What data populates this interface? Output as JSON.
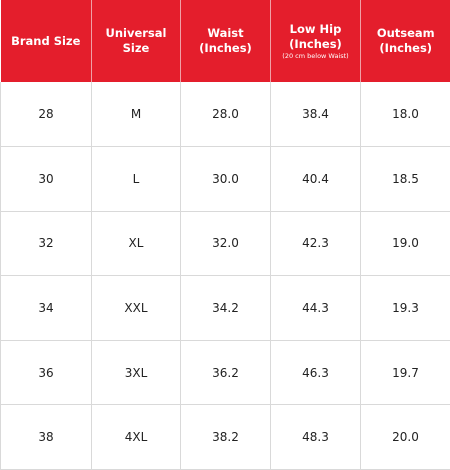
{
  "header": {
    "col1": "Brand Size",
    "col2": "Universal Size",
    "col3_line1": "Waist",
    "col3_line2": "(Inches)",
    "col4_line1": "Low Hip",
    "col4_line2": "(Inches)",
    "col4_sub": "(20 cm below Waist)",
    "col5_line1": "Outseam",
    "col5_line2": "(Inches)"
  },
  "rows": [
    {
      "brand": "28",
      "universal": "M",
      "waist": "28.0",
      "hip": "38.4",
      "outseam": "18.0"
    },
    {
      "brand": "30",
      "universal": "L",
      "waist": "30.0",
      "hip": "40.4",
      "outseam": "18.5"
    },
    {
      "brand": "32",
      "universal": "XL",
      "waist": "32.0",
      "hip": "42.3",
      "outseam": "19.0"
    },
    {
      "brand": "34",
      "universal": "XXL",
      "waist": "34.2",
      "hip": "44.3",
      "outseam": "19.3"
    },
    {
      "brand": "36",
      "universal": "3XL",
      "waist": "36.2",
      "hip": "46.3",
      "outseam": "19.7"
    },
    {
      "brand": "38",
      "universal": "4XL",
      "waist": "38.2",
      "hip": "48.3",
      "outseam": "20.0"
    }
  ],
  "colors": {
    "header_bg": "#e41e2c",
    "header_text": "#ffffff",
    "grid": "#d9d9d9"
  }
}
